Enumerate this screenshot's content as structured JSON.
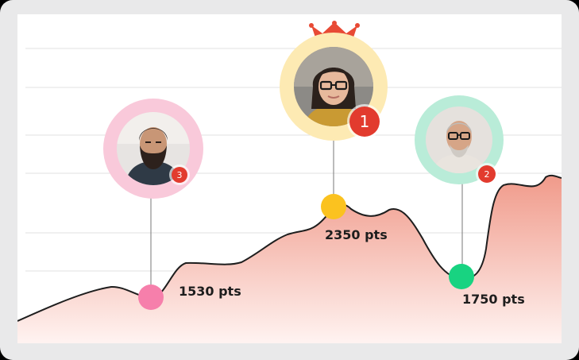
{
  "leaderboard": {
    "players": [
      {
        "rank": "3",
        "points": "1530 pts",
        "ring_color": "#f9c9da",
        "marker_color": "#f67fab",
        "avatar": "bearded-man-avatar"
      },
      {
        "rank": "1",
        "points": "2350 pts",
        "ring_color": "#fdeab3",
        "marker_color": "#fbc21f",
        "avatar": "woman-with-glasses-avatar",
        "crown": "crown-icon"
      },
      {
        "rank": "2",
        "points": "1750 pts",
        "ring_color": "#b9ecd8",
        "marker_color": "#18d381",
        "avatar": "gray-haired-man-avatar"
      }
    ],
    "colors": {
      "area_top": "#f09a8a",
      "area_bottom": "#fff3f1",
      "badge": "#e23b2e",
      "crown": "#e84a35"
    }
  }
}
